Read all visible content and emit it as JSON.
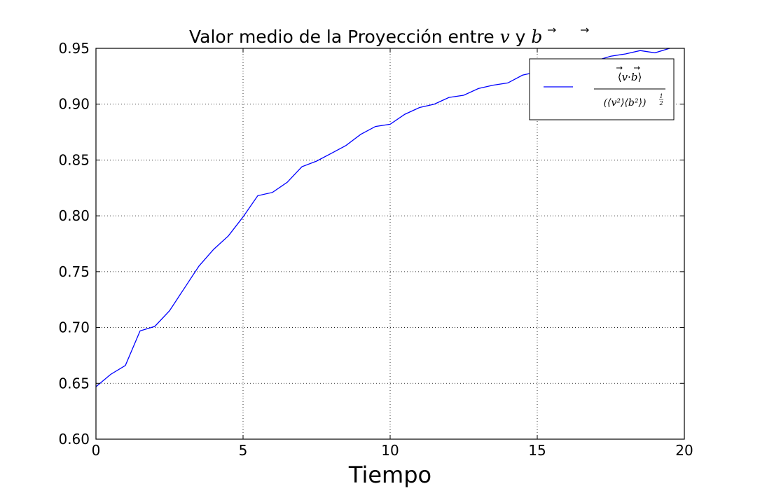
{
  "chart_data": {
    "type": "line",
    "title_main": "Valor medio de la Proyección entre ",
    "title_v": "v",
    "title_and": " y ",
    "title_b": "b",
    "xlabel": "Tiempo",
    "ylabel": "",
    "xlim": [
      0,
      20
    ],
    "ylim": [
      0.6,
      0.95
    ],
    "xticks": [
      0,
      5,
      10,
      15,
      20
    ],
    "xtick_labels": [
      "0",
      "5",
      "10",
      "15",
      "20"
    ],
    "yticks": [
      0.6,
      0.65,
      0.7,
      0.75,
      0.8,
      0.85,
      0.9,
      0.95
    ],
    "ytick_labels": [
      "0.60",
      "0.65",
      "0.70",
      "0.75",
      "0.80",
      "0.85",
      "0.90",
      "0.95"
    ],
    "grid": true,
    "legend_position": "top-right",
    "legend": {
      "num_open": "⟨",
      "num_v": "v",
      "num_dot": "·",
      "num_b": "b",
      "num_close": "⟩",
      "den_text": "(⟨v²⟩⟨b²⟩)",
      "den_exp_num": "1",
      "den_exp_den": "2"
    },
    "series": [
      {
        "color": "#0000ff",
        "x": [
          0,
          0.5,
          1,
          1.5,
          2,
          2.5,
          3,
          3.5,
          4,
          4.5,
          5,
          5.5,
          6,
          6.5,
          7,
          7.5,
          8,
          8.5,
          9,
          9.5,
          10,
          10.5,
          11,
          11.5,
          12,
          12.5,
          13,
          13.5,
          14,
          14.5,
          15,
          15.5,
          16,
          16.5,
          17,
          17.5,
          18,
          18.5,
          19,
          19.5
        ],
        "y": [
          0.647,
          0.658,
          0.666,
          0.697,
          0.701,
          0.715,
          0.735,
          0.755,
          0.77,
          0.782,
          0.799,
          0.818,
          0.821,
          0.83,
          0.844,
          0.849,
          0.856,
          0.863,
          0.873,
          0.88,
          0.882,
          0.891,
          0.897,
          0.9,
          0.906,
          0.908,
          0.914,
          0.917,
          0.919,
          0.926,
          0.929,
          0.932,
          0.934,
          0.936,
          0.939,
          0.943,
          0.945,
          0.948,
          0.946,
          0.95
        ]
      }
    ]
  }
}
